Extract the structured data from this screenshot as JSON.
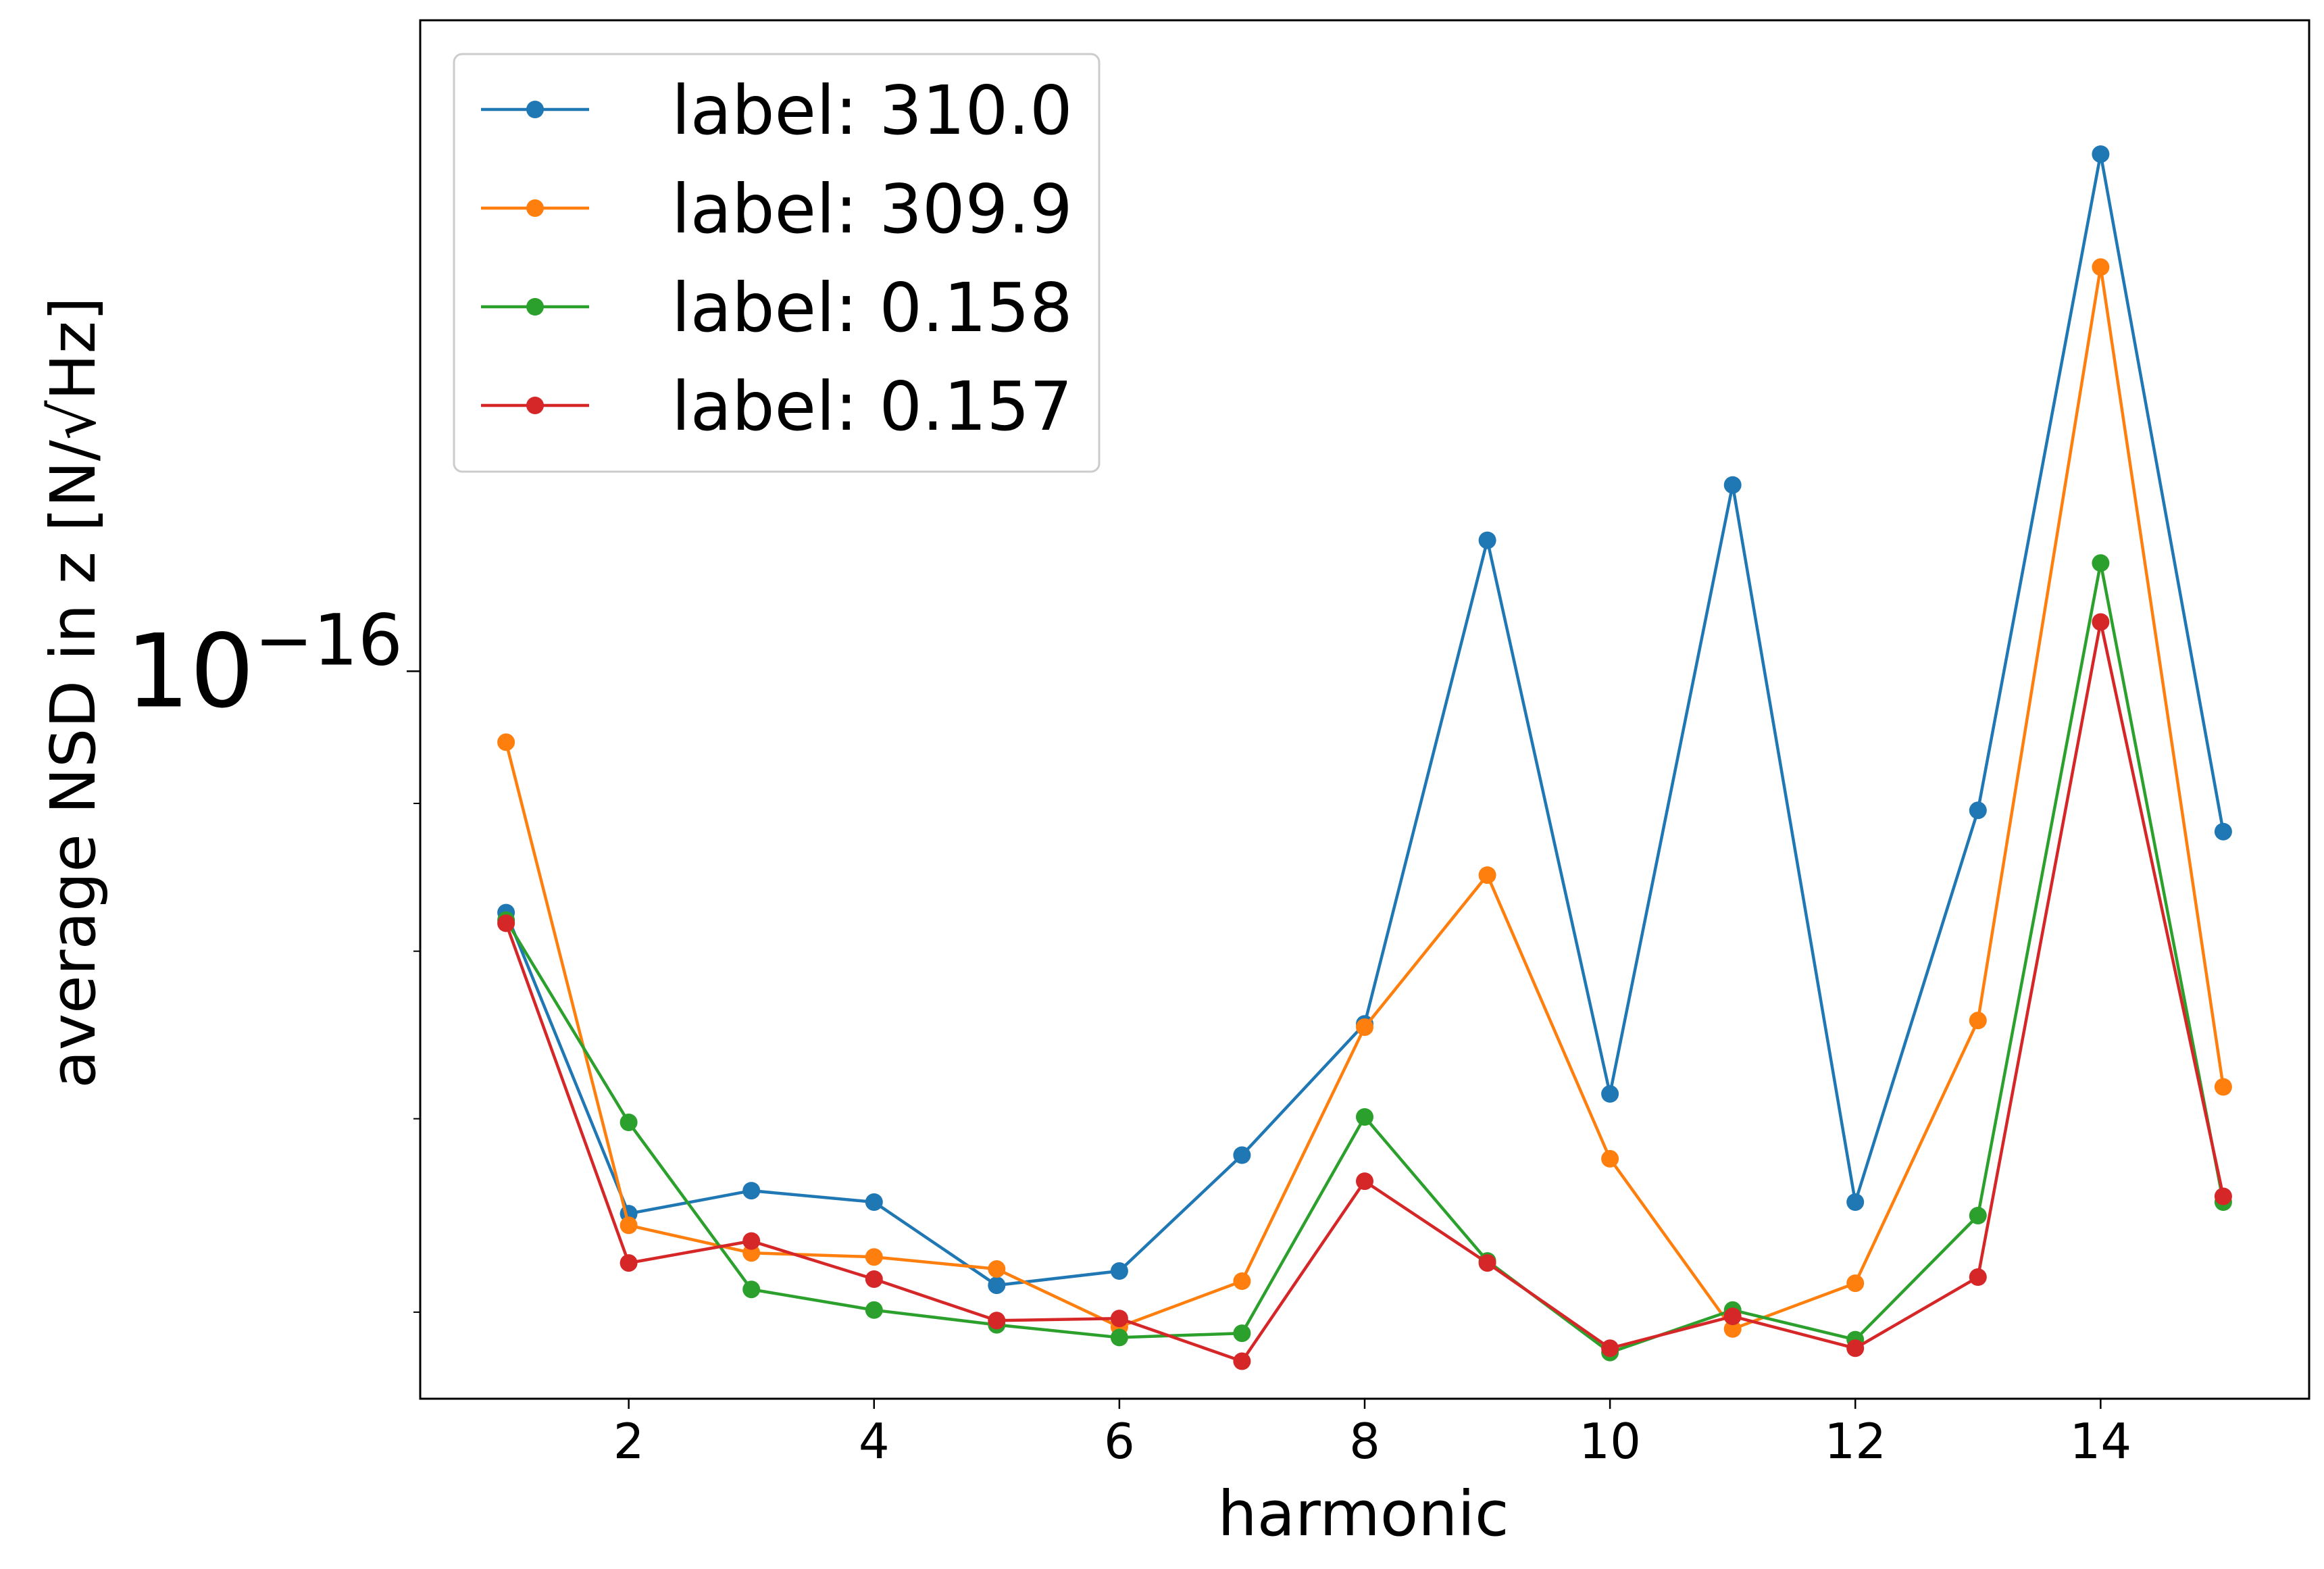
{
  "chart_data": {
    "type": "line",
    "xlabel": "harmonic",
    "ylabel": "average NSD in z [N/√Hz]",
    "yscale": "log",
    "xlim": [
      0.3,
      15.7
    ],
    "ylim": [
      5.6e-17,
      1.68e-16
    ],
    "grid": false,
    "legend_position": "top-left",
    "x_ticks": [
      "2",
      "4",
      "6",
      "8",
      "10",
      "12",
      "14"
    ],
    "y_major_tick": {
      "base": "10",
      "exponent": "−16"
    },
    "x": [
      1,
      2,
      3,
      4,
      5,
      6,
      7,
      8,
      9,
      10,
      11,
      12,
      13,
      14,
      15
    ],
    "series": [
      {
        "name": "label: 310.0",
        "color": "#1f77b4",
        "values": [
          8.25e-17,
          6.49e-17,
          6.61e-17,
          6.55e-17,
          6.13e-17,
          6.2e-17,
          6.8e-17,
          7.55e-17,
          1.11e-16,
          7.14e-17,
          1.16e-16,
          6.55e-17,
          8.95e-17,
          1.51e-16,
          8.8e-17
        ]
      },
      {
        "name": "label: 309.9",
        "color": "#ff7f0e",
        "values": [
          9.45e-17,
          6.43e-17,
          6.29e-17,
          6.27e-17,
          6.21e-17,
          5.93e-17,
          6.15e-17,
          7.53e-17,
          8.5e-17,
          6.78e-17,
          5.92e-17,
          6.14e-17,
          7.57e-17,
          1.38e-16,
          7.18e-17
        ]
      },
      {
        "name": "label: 0.158",
        "color": "#2ca02c",
        "values": [
          8.2e-17,
          6.98e-17,
          6.11e-17,
          6.01e-17,
          5.94e-17,
          5.88e-17,
          5.9e-17,
          7.01e-17,
          6.25e-17,
          5.81e-17,
          6.01e-17,
          5.87e-17,
          6.48e-17,
          1.09e-16,
          6.55e-17
        ]
      },
      {
        "name": "label: 0.157",
        "color": "#d62728",
        "values": [
          8.18e-17,
          6.24e-17,
          6.35e-17,
          6.16e-17,
          5.96e-17,
          5.97e-17,
          5.77e-17,
          6.66e-17,
          6.24e-17,
          5.83e-17,
          5.98e-17,
          5.83e-17,
          6.17e-17,
          1.04e-16,
          6.58e-17
        ]
      }
    ]
  }
}
